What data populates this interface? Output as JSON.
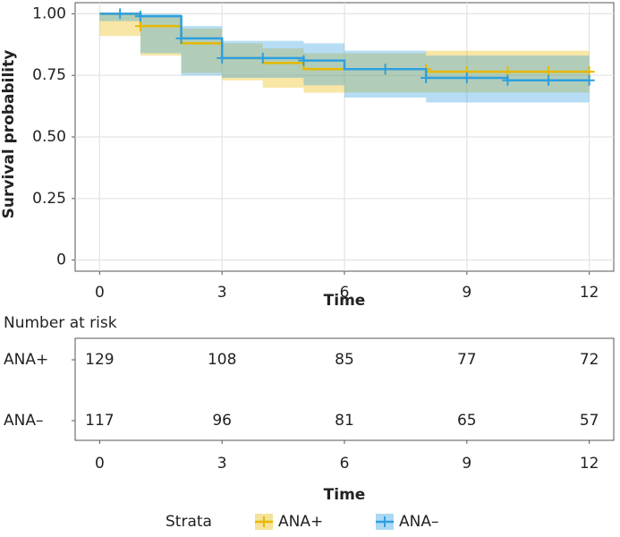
{
  "chart_data": [
    {
      "type": "survival-step",
      "ylabel": "Survival probability",
      "xlabel": "Time",
      "xlim": [
        -0.6,
        12.6
      ],
      "ylim": [
        -0.045,
        1.045
      ],
      "xticks": [
        0,
        3,
        6,
        9,
        12
      ],
      "yticks": [
        {
          "value": 0,
          "label": "0"
        },
        0.25,
        {
          "value": 0.5,
          "label": "0.50"
        },
        0.75,
        {
          "value": 1,
          "label": "1.00"
        }
      ],
      "grid": true,
      "legend_title": "Strata",
      "legend_position": "bottom",
      "series": [
        {
          "name": "ANA+",
          "color": "#E7B800",
          "x": [
            0,
            1,
            2,
            3,
            4,
            5,
            8,
            12
          ],
          "values": [
            1,
            0.95,
            0.88,
            0.82,
            0.8,
            0.775,
            0.765,
            0.765
          ],
          "lower": [
            1,
            0.91,
            0.83,
            0.76,
            0.73,
            0.7,
            0.68,
            0.68
          ],
          "upper": [
            1,
            0.99,
            0.94,
            0.88,
            0.86,
            0.84,
            0.85,
            0.85
          ],
          "censor_x": [
            1,
            7,
            8,
            9,
            10,
            11,
            12
          ],
          "censor_y": [
            0.95,
            0.775,
            0.775,
            0.765,
            0.765,
            0.765,
            0.765
          ]
        },
        {
          "name": "ANA–",
          "color": "#2E9FDF",
          "x": [
            0,
            1,
            2,
            3,
            5,
            6,
            8,
            10,
            12
          ],
          "values": [
            1,
            0.99,
            0.9,
            0.82,
            0.81,
            0.775,
            0.74,
            0.73,
            0.73
          ],
          "lower": [
            1,
            0.97,
            0.84,
            0.75,
            0.74,
            0.71,
            0.66,
            0.64,
            0.64
          ],
          "upper": [
            1,
            1,
            0.95,
            0.89,
            0.88,
            0.85,
            0.83,
            0.83,
            0.83
          ],
          "censor_x": [
            0.5,
            1,
            2,
            3,
            4,
            5,
            7,
            8,
            9,
            10,
            11,
            12
          ],
          "censor_y": [
            1,
            0.99,
            0.9,
            0.82,
            0.82,
            0.81,
            0.775,
            0.74,
            0.74,
            0.73,
            0.73,
            0.73
          ]
        }
      ]
    },
    {
      "type": "risk-table",
      "title": "Number at risk",
      "xlabel": "Time",
      "xlim": [
        -0.6,
        12.6
      ],
      "xticks": [
        0,
        3,
        6,
        9,
        12
      ],
      "rows": [
        {
          "name": "ANA+",
          "values": [
            129,
            108,
            85,
            77,
            72
          ]
        },
        {
          "name": "ANA–",
          "values": [
            117,
            96,
            81,
            65,
            57
          ]
        }
      ]
    }
  ]
}
